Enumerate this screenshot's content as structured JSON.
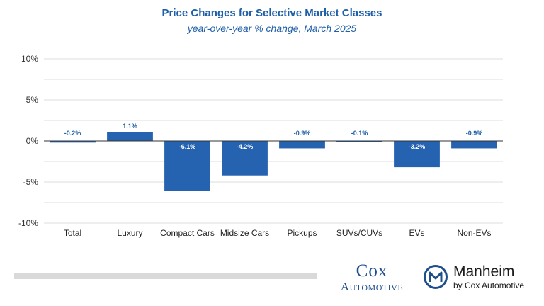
{
  "chart_data": {
    "type": "bar",
    "title": "Price Changes for Selective Market Classes",
    "subtitle": "year-over-year % change, March 2025",
    "categories": [
      "Total",
      "Luxury",
      "Compact Cars",
      "Midsize Cars",
      "Pickups",
      "SUVs/CUVs",
      "EVs",
      "Non-EVs"
    ],
    "values": [
      -0.2,
      1.1,
      -6.1,
      -4.2,
      -0.9,
      -0.1,
      -3.2,
      -0.9
    ],
    "data_labels": [
      "-0.2%",
      "1.1%",
      "-6.1%",
      "-4.2%",
      "-0.9%",
      "-0.1%",
      "-3.2%",
      "-0.9%"
    ],
    "ylim": [
      -10,
      10
    ],
    "yticks": [
      10,
      5,
      0,
      -5,
      -10
    ],
    "ytick_labels": [
      "10%",
      "5%",
      "0%",
      "-5%",
      "-10%"
    ],
    "xlabel": "",
    "ylabel": "",
    "grid": true,
    "bar_color": "#2563b0"
  },
  "branding": {
    "cox_line1": "Cox",
    "cox_line2": "Automotive",
    "manheim_name": "Manheim",
    "manheim_tagline": "by Cox Automotive"
  },
  "colors": {
    "title": "#1f5fa8",
    "bar": "#2563b0",
    "grid": "#dddddd",
    "logo_blue": "#1f4e8c"
  }
}
